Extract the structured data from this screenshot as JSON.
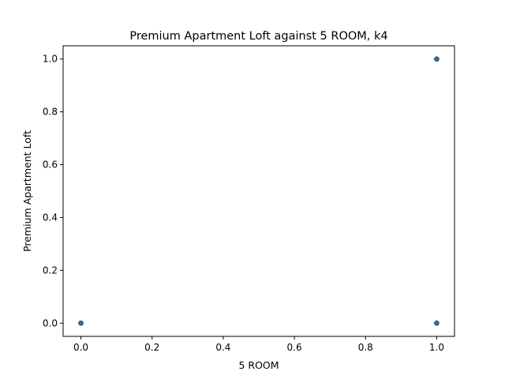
{
  "chart_data": {
    "type": "scatter",
    "title": "Premium Apartment Loft against 5 ROOM, k4",
    "xlabel": "5 ROOM",
    "ylabel": "Premium Apartment Loft",
    "xlim": [
      -0.05,
      1.05
    ],
    "ylim": [
      -0.05,
      1.05
    ],
    "xticks": [
      "0.0",
      "0.2",
      "0.4",
      "0.6",
      "0.8",
      "1.0"
    ],
    "yticks": [
      "0.0",
      "0.2",
      "0.4",
      "0.6",
      "0.8",
      "1.0"
    ],
    "grid": false,
    "marker_color": "#3a6a8e",
    "points": [
      {
        "x": 0.0,
        "y": 0.0
      },
      {
        "x": 1.0,
        "y": 0.0
      },
      {
        "x": 1.0,
        "y": 1.0
      }
    ]
  }
}
